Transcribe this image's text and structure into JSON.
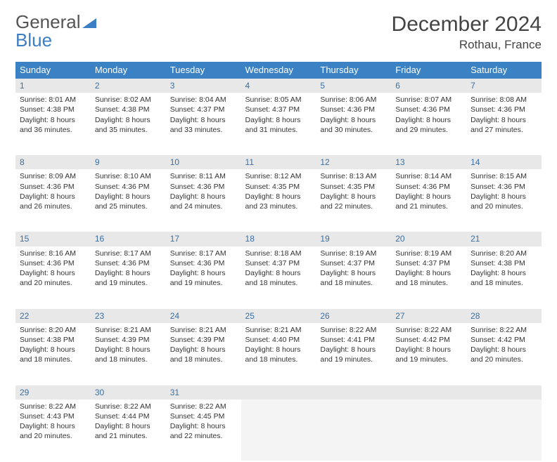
{
  "brand": {
    "part1": "General",
    "part2": "Blue"
  },
  "title": "December 2024",
  "location": "Rothau, France",
  "colors": {
    "header_bg": "#3b82c4",
    "header_text": "#ffffff",
    "daynum_bg": "#e8e8e8",
    "daynum_text": "#3b6fa0",
    "cell_border_top": "#3b82c4",
    "body_text": "#333333",
    "brand_gray": "#555555",
    "brand_blue": "#3b7fc4"
  },
  "weekdays": [
    "Sunday",
    "Monday",
    "Tuesday",
    "Wednesday",
    "Thursday",
    "Friday",
    "Saturday"
  ],
  "weeks": [
    [
      {
        "n": "1",
        "sr": "8:01 AM",
        "ss": "4:38 PM",
        "dl": "8 hours and 36 minutes."
      },
      {
        "n": "2",
        "sr": "8:02 AM",
        "ss": "4:38 PM",
        "dl": "8 hours and 35 minutes."
      },
      {
        "n": "3",
        "sr": "8:04 AM",
        "ss": "4:37 PM",
        "dl": "8 hours and 33 minutes."
      },
      {
        "n": "4",
        "sr": "8:05 AM",
        "ss": "4:37 PM",
        "dl": "8 hours and 31 minutes."
      },
      {
        "n": "5",
        "sr": "8:06 AM",
        "ss": "4:36 PM",
        "dl": "8 hours and 30 minutes."
      },
      {
        "n": "6",
        "sr": "8:07 AM",
        "ss": "4:36 PM",
        "dl": "8 hours and 29 minutes."
      },
      {
        "n": "7",
        "sr": "8:08 AM",
        "ss": "4:36 PM",
        "dl": "8 hours and 27 minutes."
      }
    ],
    [
      {
        "n": "8",
        "sr": "8:09 AM",
        "ss": "4:36 PM",
        "dl": "8 hours and 26 minutes."
      },
      {
        "n": "9",
        "sr": "8:10 AM",
        "ss": "4:36 PM",
        "dl": "8 hours and 25 minutes."
      },
      {
        "n": "10",
        "sr": "8:11 AM",
        "ss": "4:36 PM",
        "dl": "8 hours and 24 minutes."
      },
      {
        "n": "11",
        "sr": "8:12 AM",
        "ss": "4:35 PM",
        "dl": "8 hours and 23 minutes."
      },
      {
        "n": "12",
        "sr": "8:13 AM",
        "ss": "4:35 PM",
        "dl": "8 hours and 22 minutes."
      },
      {
        "n": "13",
        "sr": "8:14 AM",
        "ss": "4:36 PM",
        "dl": "8 hours and 21 minutes."
      },
      {
        "n": "14",
        "sr": "8:15 AM",
        "ss": "4:36 PM",
        "dl": "8 hours and 20 minutes."
      }
    ],
    [
      {
        "n": "15",
        "sr": "8:16 AM",
        "ss": "4:36 PM",
        "dl": "8 hours and 20 minutes."
      },
      {
        "n": "16",
        "sr": "8:17 AM",
        "ss": "4:36 PM",
        "dl": "8 hours and 19 minutes."
      },
      {
        "n": "17",
        "sr": "8:17 AM",
        "ss": "4:36 PM",
        "dl": "8 hours and 19 minutes."
      },
      {
        "n": "18",
        "sr": "8:18 AM",
        "ss": "4:37 PM",
        "dl": "8 hours and 18 minutes."
      },
      {
        "n": "19",
        "sr": "8:19 AM",
        "ss": "4:37 PM",
        "dl": "8 hours and 18 minutes."
      },
      {
        "n": "20",
        "sr": "8:19 AM",
        "ss": "4:37 PM",
        "dl": "8 hours and 18 minutes."
      },
      {
        "n": "21",
        "sr": "8:20 AM",
        "ss": "4:38 PM",
        "dl": "8 hours and 18 minutes."
      }
    ],
    [
      {
        "n": "22",
        "sr": "8:20 AM",
        "ss": "4:38 PM",
        "dl": "8 hours and 18 minutes."
      },
      {
        "n": "23",
        "sr": "8:21 AM",
        "ss": "4:39 PM",
        "dl": "8 hours and 18 minutes."
      },
      {
        "n": "24",
        "sr": "8:21 AM",
        "ss": "4:39 PM",
        "dl": "8 hours and 18 minutes."
      },
      {
        "n": "25",
        "sr": "8:21 AM",
        "ss": "4:40 PM",
        "dl": "8 hours and 18 minutes."
      },
      {
        "n": "26",
        "sr": "8:22 AM",
        "ss": "4:41 PM",
        "dl": "8 hours and 19 minutes."
      },
      {
        "n": "27",
        "sr": "8:22 AM",
        "ss": "4:42 PM",
        "dl": "8 hours and 19 minutes."
      },
      {
        "n": "28",
        "sr": "8:22 AM",
        "ss": "4:42 PM",
        "dl": "8 hours and 20 minutes."
      }
    ],
    [
      {
        "n": "29",
        "sr": "8:22 AM",
        "ss": "4:43 PM",
        "dl": "8 hours and 20 minutes."
      },
      {
        "n": "30",
        "sr": "8:22 AM",
        "ss": "4:44 PM",
        "dl": "8 hours and 21 minutes."
      },
      {
        "n": "31",
        "sr": "8:22 AM",
        "ss": "4:45 PM",
        "dl": "8 hours and 22 minutes."
      },
      null,
      null,
      null,
      null
    ]
  ],
  "labels": {
    "sunrise": "Sunrise:",
    "sunset": "Sunset:",
    "daylight": "Daylight:"
  }
}
